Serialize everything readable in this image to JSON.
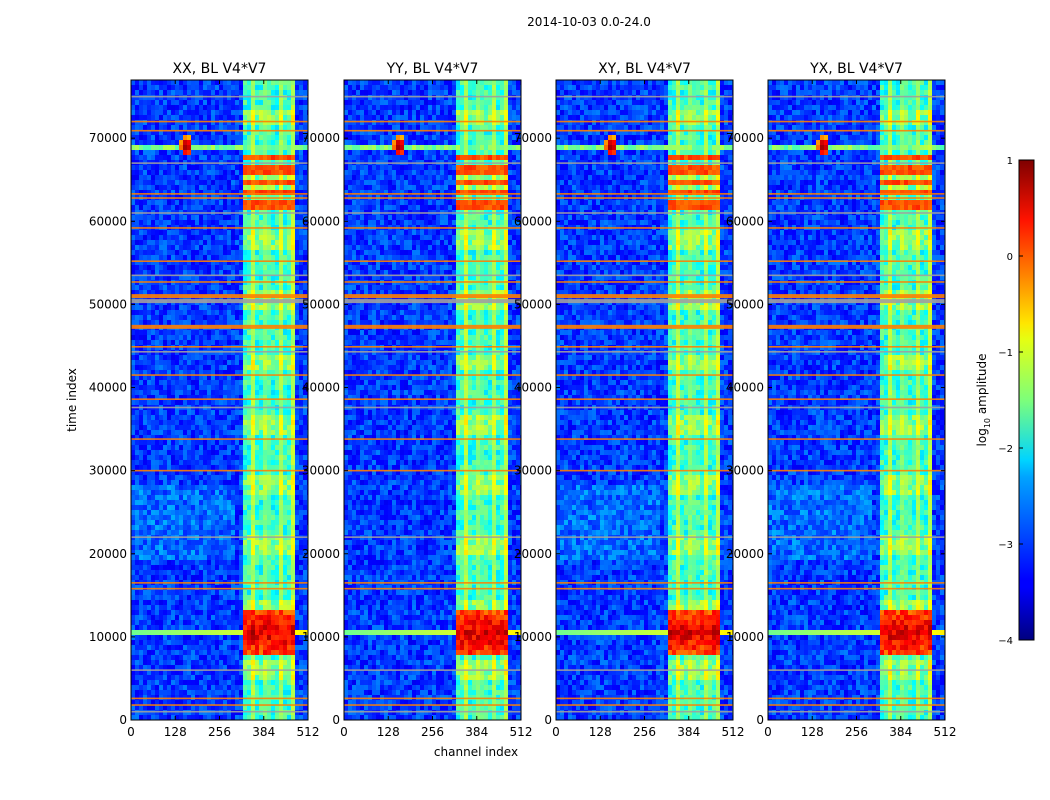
{
  "figure_title": "2014-10-03 0.0-24.0",
  "chart_data": {
    "type": "heatmap",
    "title": "2014-10-03 0.0-24.0",
    "xlabel": "channel index",
    "ylabel": "time index",
    "xlim": [
      0,
      512
    ],
    "ylim": [
      0,
      77000
    ],
    "x_ticks": [
      0,
      128,
      256,
      384,
      512
    ],
    "y_ticks": [
      0,
      10000,
      20000,
      30000,
      40000,
      50000,
      60000,
      70000
    ],
    "panels": [
      {
        "title": "XX, BL V4*V7",
        "pol": "XX"
      },
      {
        "title": "YY, BL V4*V7",
        "pol": "YY"
      },
      {
        "title": "XY, BL V4*V7",
        "pol": "XY"
      },
      {
        "title": "YX, BL V4*V7",
        "pol": "YX"
      }
    ],
    "colorbar": {
      "label": "log10 amplitude",
      "label_base": "log",
      "label_sub": "10",
      "label_rest": " amplitude",
      "min": -4,
      "max": 1,
      "ticks": [
        1,
        0,
        -1,
        -2,
        -3,
        -4
      ],
      "tick_labels": [
        "1",
        "0",
        "−1",
        "−2",
        "−3",
        "−4"
      ],
      "colormap": "jet"
    },
    "features": {
      "bright_channel_band": [
        322,
        480
      ],
      "bright_columns": [
        352,
        392,
        432,
        468
      ],
      "horizontal_stripes_time": [
        1000,
        1800,
        2600,
        6000,
        15800,
        16500,
        22000,
        30000,
        33800,
        37600,
        38600,
        41500,
        44300,
        44900,
        47300,
        50400,
        51000,
        52700,
        53500,
        55200,
        59200,
        61000,
        62800,
        63300,
        67000,
        70900,
        72000,
        75000
      ],
      "strong_burst_time": 10500,
      "rfi_spot": {
        "channel": 160,
        "time": 69000
      }
    }
  }
}
